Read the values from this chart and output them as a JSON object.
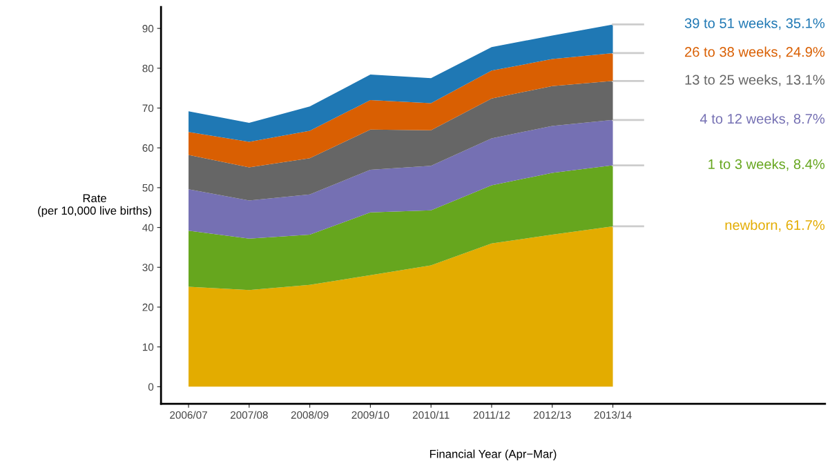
{
  "chart_data": {
    "type": "area",
    "stacked": true,
    "xlabel": "Financial Year (Apr−Mar)",
    "ylabel": "Rate\n(per 10,000 live births)",
    "categories": [
      "2006/07",
      "2007/08",
      "2008/09",
      "2009/10",
      "2010/11",
      "2011/12",
      "2012/13",
      "2013/14"
    ],
    "ylim": [
      -4.3,
      95.4
    ],
    "yticks": [
      0,
      10,
      20,
      30,
      40,
      50,
      60,
      70,
      80,
      90
    ],
    "grid": false,
    "legend": false,
    "series": [
      {
        "name": "newborn, 61.7%",
        "color": "#e3ac00",
        "values": [
          25.1,
          24.3,
          25.6,
          28.0,
          30.5,
          36.0,
          38.2,
          40.3
        ]
      },
      {
        "name": "1 to 3 weeks, 8.4%",
        "color": "#66a61e",
        "values": [
          14.1,
          12.9,
          12.6,
          15.8,
          13.8,
          14.6,
          15.5,
          15.3
        ]
      },
      {
        "name": "4 to 12 weeks, 8.7%",
        "color": "#7570b3",
        "values": [
          10.4,
          9.6,
          10.1,
          10.7,
          11.2,
          11.8,
          11.8,
          11.4
        ]
      },
      {
        "name": "13 to 25 weeks, 13.1%",
        "color": "#666666",
        "values": [
          8.6,
          8.3,
          9.1,
          10.1,
          8.9,
          10.0,
          10.0,
          9.8
        ]
      },
      {
        "name": "26 to 38 weeks, 24.9%",
        "color": "#d95f02",
        "values": [
          5.8,
          6.4,
          6.9,
          7.4,
          6.8,
          7.0,
          6.8,
          7.0
        ]
      },
      {
        "name": "39 to 51 weeks, 35.1%",
        "color": "#1f78b4",
        "values": [
          5.2,
          4.8,
          6.1,
          6.4,
          6.3,
          5.9,
          5.9,
          7.2
        ]
      }
    ]
  }
}
